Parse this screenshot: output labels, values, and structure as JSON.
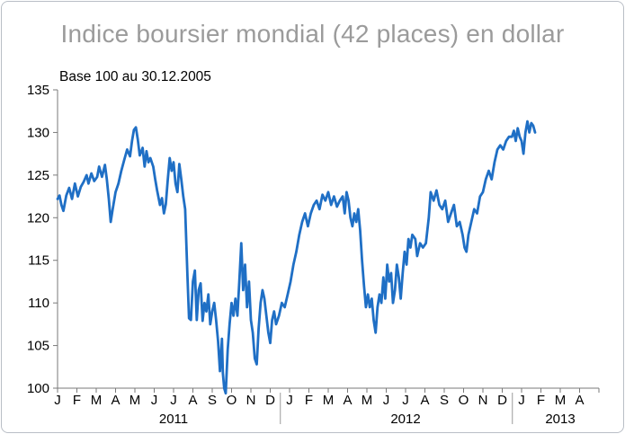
{
  "chart_data": {
    "type": "line",
    "title": "Indice boursier mondial (42 places) en dollar",
    "subtitle": "Base 100 au 30.12.2005",
    "xlabel": "",
    "ylabel": "",
    "ylim": [
      100,
      135
    ],
    "yticks": [
      "100",
      "105",
      "110",
      "115",
      "120",
      "125",
      "130",
      "135"
    ],
    "month_labels": [
      "J",
      "F",
      "M",
      "A",
      "M",
      "J",
      "J",
      "A",
      "S",
      "O",
      "N",
      "D",
      "J",
      "F",
      "M",
      "A",
      "M",
      "J",
      "J",
      "A",
      "S",
      "O",
      "N",
      "D",
      "J",
      "F",
      "M",
      "A"
    ],
    "years": [
      {
        "label": "2011",
        "start_month": 0,
        "end_month": 12
      },
      {
        "label": "2012",
        "start_month": 12,
        "end_month": 24
      },
      {
        "label": "2013",
        "start_month": 24,
        "end_month": 28
      }
    ],
    "x_unit": "months since Jan 2011",
    "series": [
      {
        "name": "Indice boursier mondial",
        "color": "#1f6fc5",
        "points": [
          [
            0.0,
            122.2
          ],
          [
            0.1,
            122.6
          ],
          [
            0.2,
            121.5
          ],
          [
            0.3,
            120.8
          ],
          [
            0.45,
            122.6
          ],
          [
            0.6,
            123.5
          ],
          [
            0.75,
            122.2
          ],
          [
            0.9,
            124.0
          ],
          [
            1.05,
            122.5
          ],
          [
            1.2,
            123.6
          ],
          [
            1.35,
            124.2
          ],
          [
            1.5,
            125.0
          ],
          [
            1.6,
            124.0
          ],
          [
            1.75,
            125.2
          ],
          [
            1.9,
            124.3
          ],
          [
            2.05,
            124.8
          ],
          [
            2.15,
            126.0
          ],
          [
            2.3,
            124.8
          ],
          [
            2.45,
            126.2
          ],
          [
            2.55,
            124.5
          ],
          [
            2.65,
            122.2
          ],
          [
            2.75,
            119.5
          ],
          [
            2.85,
            121.0
          ],
          [
            3.0,
            123.0
          ],
          [
            3.15,
            124.0
          ],
          [
            3.3,
            125.5
          ],
          [
            3.45,
            126.8
          ],
          [
            3.6,
            128.0
          ],
          [
            3.75,
            127.2
          ],
          [
            3.85,
            129.0
          ],
          [
            3.95,
            130.3
          ],
          [
            4.05,
            130.6
          ],
          [
            4.15,
            129.2
          ],
          [
            4.25,
            127.3
          ],
          [
            4.4,
            128.2
          ],
          [
            4.5,
            126.0
          ],
          [
            4.6,
            127.8
          ],
          [
            4.7,
            126.5
          ],
          [
            4.8,
            127.0
          ],
          [
            4.95,
            126.0
          ],
          [
            5.05,
            124.5
          ],
          [
            5.15,
            123.2
          ],
          [
            5.3,
            121.5
          ],
          [
            5.4,
            122.3
          ],
          [
            5.5,
            120.5
          ],
          [
            5.6,
            121.6
          ],
          [
            5.7,
            124.5
          ],
          [
            5.8,
            127.0
          ],
          [
            5.9,
            125.5
          ],
          [
            6.0,
            126.5
          ],
          [
            6.1,
            124.0
          ],
          [
            6.2,
            123.0
          ],
          [
            6.3,
            126.3
          ],
          [
            6.4,
            124.5
          ],
          [
            6.5,
            122.5
          ],
          [
            6.6,
            121.0
          ],
          [
            6.72,
            113.0
          ],
          [
            6.8,
            108.2
          ],
          [
            6.9,
            108.0
          ],
          [
            7.0,
            112.5
          ],
          [
            7.1,
            113.8
          ],
          [
            7.2,
            108.0
          ],
          [
            7.3,
            111.5
          ],
          [
            7.4,
            112.3
          ],
          [
            7.5,
            107.9
          ],
          [
            7.6,
            110.0
          ],
          [
            7.7,
            109.0
          ],
          [
            7.8,
            111.0
          ],
          [
            7.9,
            107.5
          ],
          [
            8.0,
            109.0
          ],
          [
            8.1,
            110.0
          ],
          [
            8.2,
            108.0
          ],
          [
            8.3,
            105.5
          ],
          [
            8.4,
            102.0
          ],
          [
            8.5,
            105.8
          ],
          [
            8.55,
            101.8
          ],
          [
            8.62,
            100.0
          ],
          [
            8.7,
            99.4
          ],
          [
            8.8,
            104.5
          ],
          [
            8.9,
            107.5
          ],
          [
            9.0,
            110.0
          ],
          [
            9.1,
            108.5
          ],
          [
            9.2,
            110.5
          ],
          [
            9.3,
            108.5
          ],
          [
            9.4,
            112.5
          ],
          [
            9.5,
            117.0
          ],
          [
            9.6,
            111.5
          ],
          [
            9.7,
            114.5
          ],
          [
            9.8,
            109.5
          ],
          [
            9.9,
            112.5
          ],
          [
            10.0,
            108.0
          ],
          [
            10.1,
            106.5
          ],
          [
            10.2,
            103.5
          ],
          [
            10.3,
            102.8
          ],
          [
            10.4,
            107.0
          ],
          [
            10.5,
            110.0
          ],
          [
            10.6,
            111.5
          ],
          [
            10.7,
            110.5
          ],
          [
            10.8,
            108.5
          ],
          [
            10.9,
            106.5
          ],
          [
            11.0,
            105.3
          ],
          [
            11.1,
            108.0
          ],
          [
            11.2,
            109.0
          ],
          [
            11.3,
            107.5
          ],
          [
            11.45,
            108.5
          ],
          [
            11.6,
            110.0
          ],
          [
            11.75,
            109.5
          ],
          [
            11.9,
            111.0
          ],
          [
            12.05,
            112.5
          ],
          [
            12.2,
            114.5
          ],
          [
            12.35,
            116.0
          ],
          [
            12.5,
            118.0
          ],
          [
            12.65,
            119.5
          ],
          [
            12.8,
            120.5
          ],
          [
            12.95,
            119.0
          ],
          [
            13.1,
            120.5
          ],
          [
            13.25,
            121.5
          ],
          [
            13.4,
            122.0
          ],
          [
            13.55,
            121.0
          ],
          [
            13.7,
            122.7
          ],
          [
            13.85,
            122.0
          ],
          [
            14.0,
            123.0
          ],
          [
            14.15,
            121.5
          ],
          [
            14.3,
            122.5
          ],
          [
            14.45,
            121.3
          ],
          [
            14.6,
            122.0
          ],
          [
            14.75,
            122.5
          ],
          [
            14.85,
            120.5
          ],
          [
            14.95,
            123.0
          ],
          [
            15.05,
            122.0
          ],
          [
            15.15,
            120.0
          ],
          [
            15.25,
            119.0
          ],
          [
            15.35,
            120.5
          ],
          [
            15.45,
            119.5
          ],
          [
            15.55,
            121.0
          ],
          [
            15.65,
            118.5
          ],
          [
            15.75,
            115.0
          ],
          [
            15.85,
            112.0
          ],
          [
            15.95,
            109.5
          ],
          [
            16.05,
            111.0
          ],
          [
            16.15,
            109.5
          ],
          [
            16.25,
            110.5
          ],
          [
            16.35,
            108.0
          ],
          [
            16.45,
            106.5
          ],
          [
            16.55,
            109.5
          ],
          [
            16.65,
            111.0
          ],
          [
            16.75,
            110.0
          ],
          [
            16.85,
            113.0
          ],
          [
            16.95,
            110.5
          ],
          [
            17.05,
            114.5
          ],
          [
            17.15,
            112.5
          ],
          [
            17.25,
            113.5
          ],
          [
            17.35,
            110.0
          ],
          [
            17.45,
            111.5
          ],
          [
            17.55,
            114.5
          ],
          [
            17.65,
            113.0
          ],
          [
            17.75,
            110.5
          ],
          [
            17.85,
            113.5
          ],
          [
            17.95,
            116.0
          ],
          [
            18.05,
            114.5
          ],
          [
            18.15,
            117.5
          ],
          [
            18.25,
            116.5
          ],
          [
            18.35,
            118.0
          ],
          [
            18.5,
            117.5
          ],
          [
            18.6,
            115.5
          ],
          [
            18.75,
            117.0
          ],
          [
            18.9,
            116.5
          ],
          [
            19.05,
            117.0
          ],
          [
            19.2,
            120.0
          ],
          [
            19.3,
            123.0
          ],
          [
            19.45,
            122.0
          ],
          [
            19.6,
            123.2
          ],
          [
            19.75,
            121.5
          ],
          [
            19.9,
            121.0
          ],
          [
            20.05,
            122.0
          ],
          [
            20.2,
            119.5
          ],
          [
            20.35,
            120.5
          ],
          [
            20.5,
            121.5
          ],
          [
            20.65,
            119.0
          ],
          [
            20.8,
            119.5
          ],
          [
            20.95,
            118.0
          ],
          [
            21.05,
            116.5
          ],
          [
            21.15,
            116.0
          ],
          [
            21.25,
            118.0
          ],
          [
            21.4,
            119.5
          ],
          [
            21.55,
            121.0
          ],
          [
            21.7,
            120.5
          ],
          [
            21.85,
            122.5
          ],
          [
            22.0,
            123.0
          ],
          [
            22.15,
            124.5
          ],
          [
            22.3,
            125.5
          ],
          [
            22.45,
            124.5
          ],
          [
            22.6,
            126.5
          ],
          [
            22.75,
            128.0
          ],
          [
            22.9,
            128.5
          ],
          [
            23.05,
            128.0
          ],
          [
            23.2,
            129.0
          ],
          [
            23.35,
            129.5
          ],
          [
            23.5,
            129.5
          ],
          [
            23.6,
            130.2
          ],
          [
            23.7,
            129.0
          ],
          [
            23.8,
            130.5
          ],
          [
            23.9,
            129.5
          ],
          [
            24.0,
            129.0
          ],
          [
            24.1,
            127.5
          ],
          [
            24.2,
            130.0
          ],
          [
            24.3,
            131.3
          ],
          [
            24.4,
            130.0
          ],
          [
            24.5,
            131.1
          ],
          [
            24.6,
            130.8
          ],
          [
            24.7,
            130.0
          ]
        ]
      }
    ]
  }
}
